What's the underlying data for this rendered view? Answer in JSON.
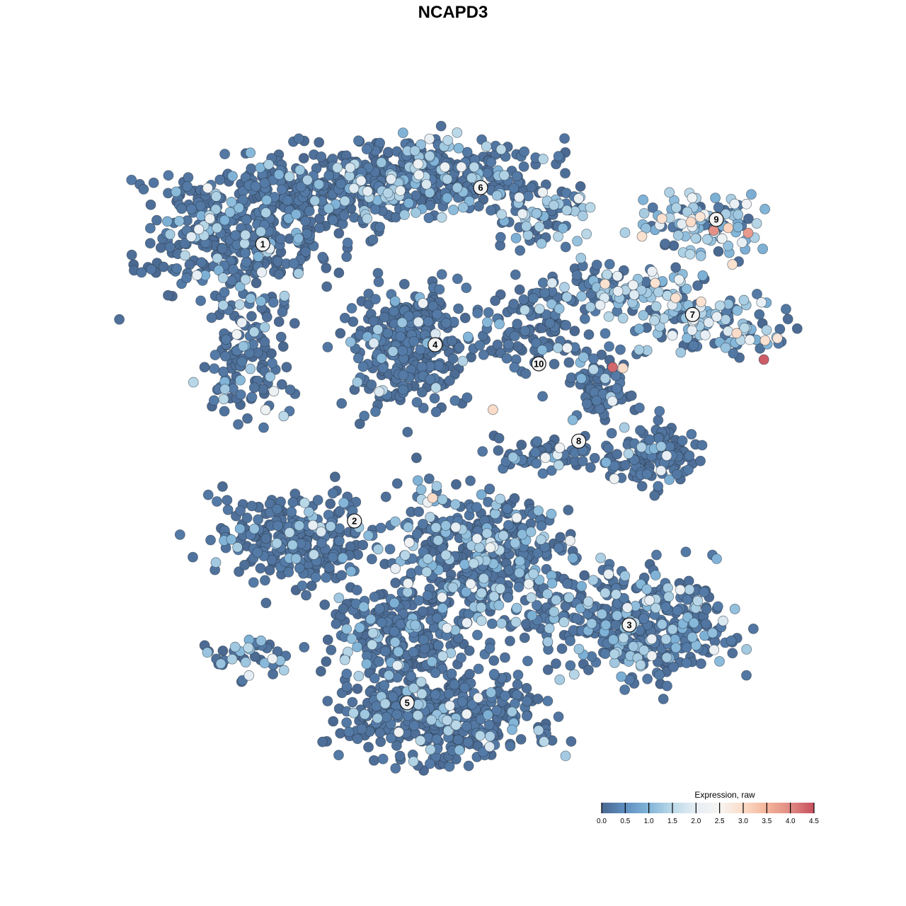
{
  "chart_data": {
    "type": "scatter",
    "title": "NCAPD3",
    "xlabel": "",
    "ylabel": "",
    "axes_visible": false,
    "grid": false,
    "xlim": [
      -40,
      40
    ],
    "ylim": [
      -40,
      40
    ],
    "colorbar": {
      "title": "Expression, raw",
      "range": [
        0,
        4.5
      ],
      "ticks": [
        "0.0",
        "0.5",
        "1.0",
        "1.5",
        "2.0",
        "2.5",
        "3.0",
        "3.5",
        "4.0",
        "4.5"
      ],
      "colors": [
        "#4a6890",
        "#5f8fc0",
        "#82b5d8",
        "#bcd9e8",
        "#e6eef4",
        "#f7f5f2",
        "#fbdcc8",
        "#f4b49a",
        "#e08a82",
        "#c8505f"
      ],
      "placement": "bottom-right"
    },
    "cluster_labels": [
      {
        "label": "1",
        "x": -22.4,
        "y": 24.6
      },
      {
        "label": "6",
        "x": 3.25,
        "y": 31.25
      },
      {
        "label": "9",
        "x": 31,
        "y": 27.5
      },
      {
        "label": "7",
        "x": 28.2,
        "y": 16.3
      },
      {
        "label": "4",
        "x": -2.1,
        "y": 12.75
      },
      {
        "label": "10",
        "x": 10.1,
        "y": 10.5
      },
      {
        "label": "8",
        "x": 14.8,
        "y": 1.4
      },
      {
        "label": "2",
        "x": -11.6,
        "y": -8
      },
      {
        "label": "3",
        "x": 20.75,
        "y": -20.25
      },
      {
        "label": "5",
        "x": -5.4,
        "y": -29.4
      }
    ],
    "point_groups": [
      {
        "x": -25.8,
        "y": 25.8,
        "sx": 9.2,
        "sy": 7.5,
        "n": 350,
        "high_fraction": 0.15
      },
      {
        "x": -15.8,
        "y": 30.8,
        "sx": 9.2,
        "sy": 4.2,
        "n": 200,
        "high_fraction": 0.15
      },
      {
        "x": -24.2,
        "y": 11.7,
        "sx": 5,
        "sy": 6.7,
        "n": 120,
        "high_fraction": 0.12
      },
      {
        "x": -6.7,
        "y": 32.5,
        "sx": 6.7,
        "sy": 3.75,
        "n": 150,
        "high_fraction": 0.2
      },
      {
        "x": 0.8,
        "y": 32.5,
        "sx": 9.2,
        "sy": 3.75,
        "n": 200,
        "high_fraction": 0.2
      },
      {
        "x": 10.8,
        "y": 28.3,
        "sx": 5,
        "sy": 3.3,
        "n": 80,
        "high_fraction": 0.35
      },
      {
        "x": -5.4,
        "y": 12.5,
        "sx": 6.25,
        "sy": 6.7,
        "n": 300,
        "high_fraction": 0.08
      },
      {
        "x": 10,
        "y": 14.2,
        "sx": 5,
        "sy": 5,
        "n": 100,
        "high_fraction": 0.05
      },
      {
        "x": 20,
        "y": 19.2,
        "sx": 8.3,
        "sy": 2.5,
        "n": 120,
        "high_fraction": 0.45
      },
      {
        "x": 30,
        "y": 15,
        "sx": 8.3,
        "sy": 2.9,
        "n": 120,
        "high_fraction": 0.6
      },
      {
        "x": 30,
        "y": 26.7,
        "sx": 6.7,
        "sy": 3.3,
        "n": 100,
        "high_fraction": 0.7
      },
      {
        "x": 17.5,
        "y": 7.5,
        "sx": 3.3,
        "sy": 4.2,
        "n": 80,
        "high_fraction": 0.1
      },
      {
        "x": 23.75,
        "y": -0.4,
        "sx": 5,
        "sy": 3.3,
        "n": 120,
        "high_fraction": 0.08
      },
      {
        "x": 11.7,
        "y": 0,
        "sx": 5.8,
        "sy": 1.7,
        "n": 60,
        "high_fraction": 0.1
      },
      {
        "x": -18.3,
        "y": -10,
        "sx": 8.3,
        "sy": 4.6,
        "n": 250,
        "high_fraction": 0.12
      },
      {
        "x": 3.3,
        "y": -12.5,
        "sx": 10,
        "sy": 7.5,
        "n": 450,
        "high_fraction": 0.22
      },
      {
        "x": 21.7,
        "y": -20,
        "sx": 10,
        "sy": 5.8,
        "n": 400,
        "high_fraction": 0.2
      },
      {
        "x": -6.7,
        "y": -21.7,
        "sx": 7.5,
        "sy": 5,
        "n": 200,
        "high_fraction": 0.15
      },
      {
        "x": -1.7,
        "y": -30.8,
        "sx": 10,
        "sy": 5,
        "n": 400,
        "high_fraction": 0.12
      },
      {
        "x": -24.2,
        "y": -24.2,
        "sx": 4.2,
        "sy": 2.1,
        "n": 40,
        "high_fraction": 0.3
      }
    ],
    "high_points": [
      [
        18.8,
        10.1,
        4.3
      ],
      [
        20,
        10,
        3.0
      ],
      [
        30.7,
        26.2,
        3.9
      ],
      [
        34.75,
        25.9,
        3.8
      ],
      [
        36.6,
        11,
        4.4
      ],
      [
        4.7,
        5.1,
        3.0
      ],
      [
        -2.4,
        -5.3,
        3.0
      ],
      [
        32.9,
        22.2,
        2.9
      ],
      [
        17.9,
        19.9,
        2.9
      ],
      [
        22.25,
        25.5,
        2.9
      ],
      [
        24.6,
        27.6,
        2.9
      ],
      [
        28,
        27.2,
        3.0
      ],
      [
        29.1,
        27.8,
        2.8
      ],
      [
        32.4,
        26.5,
        3.1
      ],
      [
        26.2,
        18.25,
        2.9
      ],
      [
        29.2,
        17.8,
        2.9
      ],
      [
        33.4,
        14.1,
        3.0
      ],
      [
        36.75,
        13.25,
        2.9
      ],
      [
        38.2,
        13.5,
        2.8
      ],
      [
        23.8,
        20,
        2.9
      ]
    ]
  }
}
